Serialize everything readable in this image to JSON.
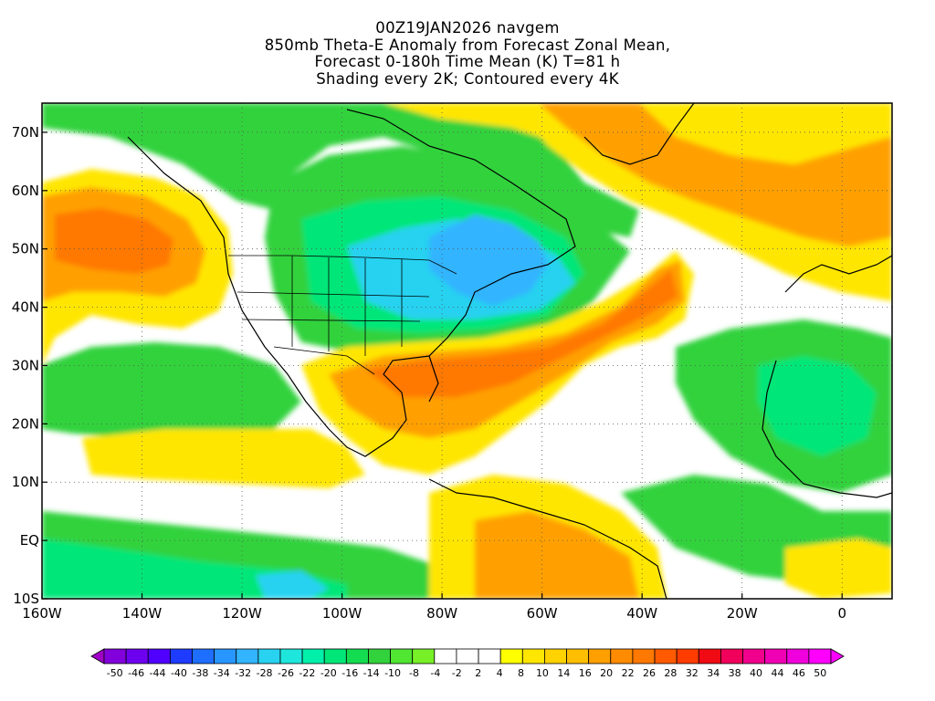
{
  "title_lines": [
    "00Z19JAN2026 navgem",
    "850mb Theta-E Anomaly from Forecast Zonal Mean,",
    "Forecast 0-180h Time Mean (K) T=81 h",
    "Shading every 2K; Contoured every 4K"
  ],
  "map": {
    "lon_range": [
      -160,
      10
    ],
    "lat_range": [
      -10,
      75
    ],
    "lat_ticks": [
      {
        "value": 70,
        "label": "70N"
      },
      {
        "value": 60,
        "label": "60N"
      },
      {
        "value": 50,
        "label": "50N"
      },
      {
        "value": 40,
        "label": "40N"
      },
      {
        "value": 30,
        "label": "30N"
      },
      {
        "value": 20,
        "label": "20N"
      },
      {
        "value": 10,
        "label": "10N"
      },
      {
        "value": 0,
        "label": "EQ"
      },
      {
        "value": -10,
        "label": "10S"
      }
    ],
    "lon_ticks": [
      {
        "value": -160,
        "label": "160W"
      },
      {
        "value": -140,
        "label": "140W"
      },
      {
        "value": -120,
        "label": "120W"
      },
      {
        "value": -100,
        "label": "100W"
      },
      {
        "value": -80,
        "label": "80W"
      },
      {
        "value": -60,
        "label": "60W"
      },
      {
        "value": -40,
        "label": "40W"
      },
      {
        "value": -20,
        "label": "20W"
      },
      {
        "value": 0,
        "label": "0"
      }
    ],
    "grid": "dotted"
  },
  "colorbar": {
    "labels": [
      "-50",
      "-46",
      "-44",
      "-40",
      "-38",
      "-34",
      "-32",
      "-28",
      "-26",
      "-22",
      "-20",
      "-16",
      "-14",
      "-10",
      "-8",
      "-4",
      "-2",
      "2",
      "4",
      "8",
      "10",
      "14",
      "16",
      "20",
      "22",
      "26",
      "28",
      "32",
      "34",
      "38",
      "40",
      "44",
      "46",
      "50"
    ],
    "colors": [
      "#a000c8",
      "#8200dc",
      "#6e00f0",
      "#5000ff",
      "#1e3cff",
      "#1e6eff",
      "#2896ff",
      "#32b4ff",
      "#28d2f0",
      "#1ee6dc",
      "#00f0aa",
      "#00e678",
      "#14dc50",
      "#32d23c",
      "#50e632",
      "#78f028",
      "#ffffff",
      "#ffffff",
      "#ffffff",
      "#ffff00",
      "#ffe600",
      "#ffd200",
      "#ffbe00",
      "#ffa000",
      "#ff8c00",
      "#ff7800",
      "#ff5a00",
      "#ff3c00",
      "#f00a14",
      "#f0005a",
      "#f0008c",
      "#f000b4",
      "#f000dc",
      "#ff00ff",
      "#ff00ff"
    ]
  }
}
